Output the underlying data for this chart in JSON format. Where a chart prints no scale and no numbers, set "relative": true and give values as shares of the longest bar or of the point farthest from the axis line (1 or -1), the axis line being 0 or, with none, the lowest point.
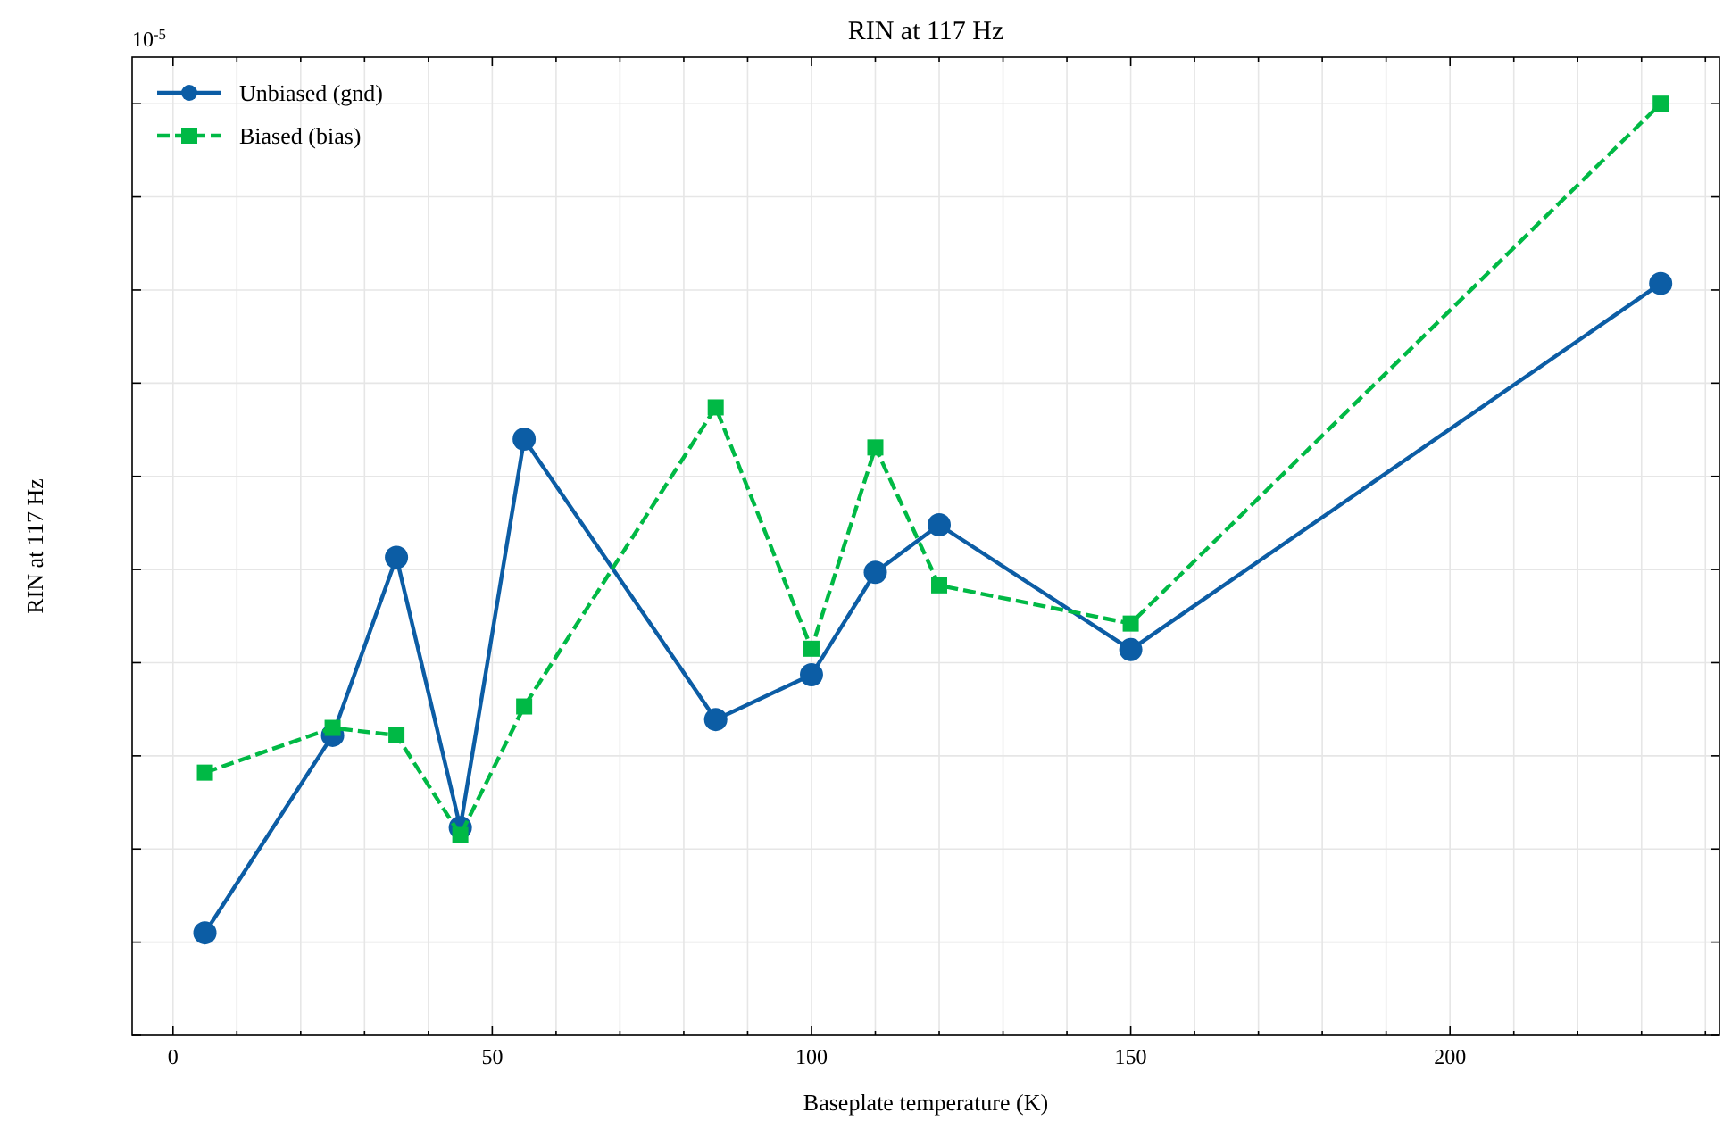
{
  "chart_data": {
    "type": "line",
    "title": "RIN at 117 Hz",
    "xlabel": "Baseplate temperature (K)",
    "ylabel": "RIN at 117 Hz",
    "relative": true,
    "annotations": [
      "10$^{-5}$"
    ],
    "grid": true,
    "legend": "top left",
    "x": [
      5,
      25,
      35,
      45,
      55,
      85,
      100,
      110,
      120,
      150,
      233
    ],
    "xlim": [
      -6.4,
      242.2
    ],
    "xticks": [
      0,
      {
        "value": 10,
        "label": null
      },
      {
        "value": 20,
        "label": null
      },
      {
        "value": 30,
        "label": null
      },
      {
        "value": 40,
        "label": null
      },
      50,
      {
        "value": 60,
        "label": null
      },
      {
        "value": 70,
        "label": null
      },
      {
        "value": 80,
        "label": null
      },
      {
        "value": 90,
        "label": null
      },
      100,
      {
        "value": 110,
        "label": null
      },
      {
        "value": 120,
        "label": null
      },
      {
        "value": 130,
        "label": null
      },
      {
        "value": 140,
        "label": null
      },
      150,
      {
        "value": 160,
        "label": null
      },
      {
        "value": 170,
        "label": null
      },
      {
        "value": 180,
        "label": null
      },
      {
        "value": 190,
        "label": null
      },
      200,
      {
        "value": 210,
        "label": null
      },
      {
        "value": 220,
        "label": null
      },
      {
        "value": 230,
        "label": null
      },
      {
        "value": 240,
        "label": null
      }
    ],
    "series": [
      {
        "name": "Unbiased (gnd)",
        "color": "#0c5da5",
        "marker": "circle",
        "line_style": "solid",
        "values": [
          0.11,
          0.322,
          0.513,
          0.223,
          0.64,
          0.339,
          0.387,
          0.497,
          0.548,
          0.414,
          0.807
        ]
      },
      {
        "name": "Biased (bias)",
        "color": "#00b945",
        "marker": "square",
        "line_style": "dashed",
        "values": [
          0.282,
          0.33,
          0.322,
          0.215,
          0.353,
          0.674,
          0.415,
          0.631,
          0.483,
          0.442,
          1
        ]
      }
    ]
  }
}
